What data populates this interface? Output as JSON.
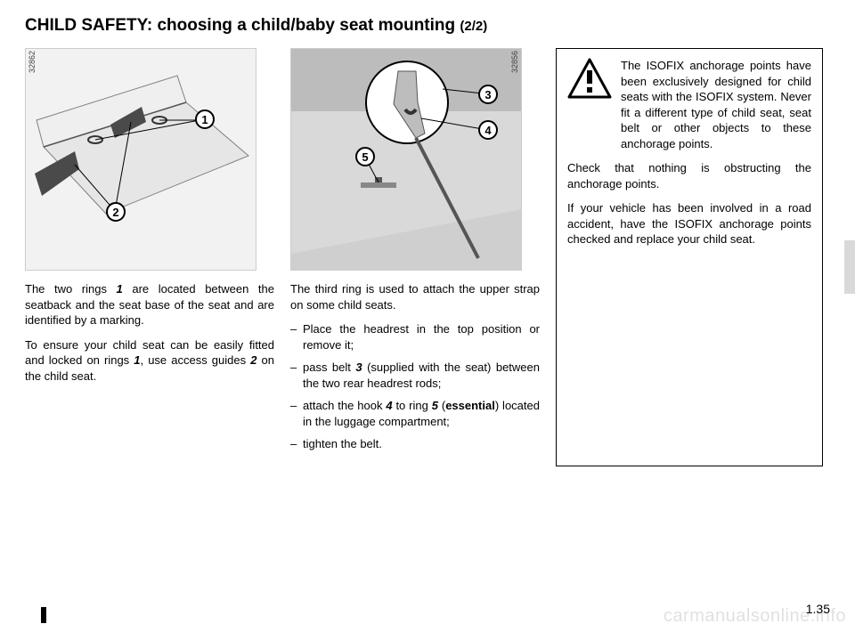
{
  "title_main": "CHILD SAFETY: choosing a child/baby seat mounting ",
  "title_sub": "(2/2)",
  "fig1": {
    "code": "32862",
    "labels": {
      "1": "1",
      "2": "2"
    },
    "positions": {
      "1": [
        190,
        68
      ],
      "2": [
        90,
        172
      ]
    }
  },
  "fig2": {
    "code": "32856",
    "labels": {
      "3": "3",
      "4": "4",
      "5": "5"
    },
    "positions": {
      "3": [
        210,
        40
      ],
      "4": [
        210,
        80
      ],
      "5": [
        72,
        110
      ]
    }
  },
  "col1_paras": [
    "The two rings <b>1</b> are located between the seatback and the seat base of the seat and are identified by a marking.",
    "To ensure your child seat can be easily fitted and locked on rings <b>1</b>, use access guides <b>2</b> on the child seat."
  ],
  "col2_intro": "The third ring is used to attach the upper strap on some child seats.",
  "col2_items": [
    "Place the headrest in the top position or remove it;",
    "pass belt <b>3</b> (supplied with the seat) between the two rear headrest rods;",
    "attach the hook <b>4</b> to ring <b>5</b> (<strong>essen­tial</strong>) located in the luggage compart­ment;",
    "tighten the belt."
  ],
  "warn_paras": [
    "The ISOFIX anchorage points have been exclu­sively designed for child seats with the ISOFIX system. Never fit a different type of child seat, seat belt or other objects to these anchorage points.",
    "Check that nothing is obstructing the anchorage points.",
    "If your vehicle has been involved in a road accident, have the ISOFIX anchorage points checked and re­place your child seat."
  ],
  "page_number": "1.35",
  "watermark": "carmanualsonline.info",
  "colors": {
    "fig_bg": "#f2f2f2",
    "border": "#cccccc",
    "seat_fill": "#dcdcdc",
    "seat_stroke": "#808080",
    "dark": "#4a4a4a",
    "line_illus": "#555555"
  }
}
